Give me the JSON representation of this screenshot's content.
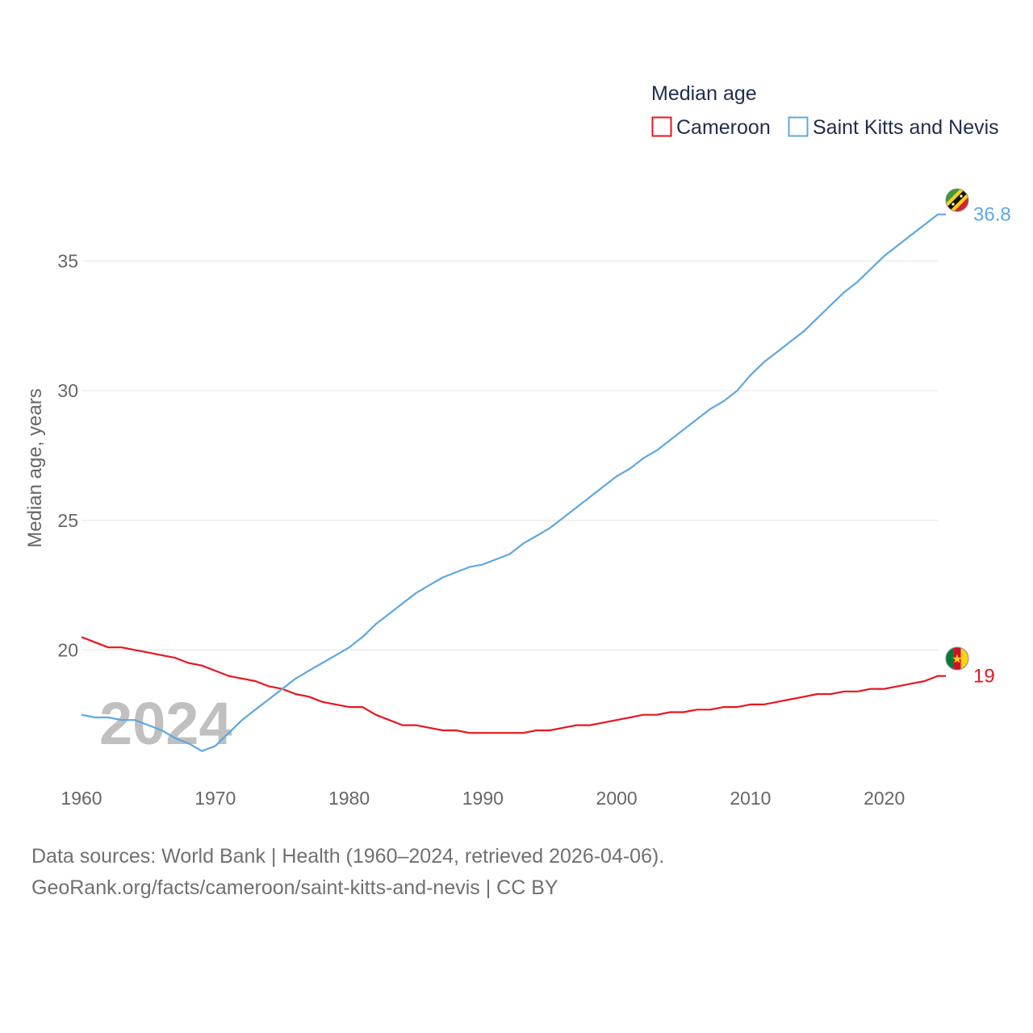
{
  "chart_data": {
    "type": "line",
    "title": "Median age",
    "xlabel": "",
    "ylabel": "Median age, years",
    "xlim": [
      1960,
      2024
    ],
    "ylim": [
      15.5,
      37.6
    ],
    "x_ticks": [
      1960,
      1970,
      1980,
      1990,
      2000,
      2010,
      2020
    ],
    "y_ticks": [
      20,
      25,
      30,
      35
    ],
    "grid": true,
    "legend_position": "top-right",
    "current_year_label": "2024",
    "series": [
      {
        "name": "Cameroon",
        "color": "#e8161e",
        "end_label": "19",
        "flag": "cameroon-flag",
        "x": [
          1960,
          1961,
          1962,
          1963,
          1964,
          1965,
          1966,
          1967,
          1968,
          1969,
          1970,
          1971,
          1972,
          1973,
          1974,
          1975,
          1976,
          1977,
          1978,
          1979,
          1980,
          1981,
          1982,
          1983,
          1984,
          1985,
          1986,
          1987,
          1988,
          1989,
          1990,
          1991,
          1992,
          1993,
          1994,
          1995,
          1996,
          1997,
          1998,
          1999,
          2000,
          2001,
          2002,
          2003,
          2004,
          2005,
          2006,
          2007,
          2008,
          2009,
          2010,
          2011,
          2012,
          2013,
          2014,
          2015,
          2016,
          2017,
          2018,
          2019,
          2020,
          2021,
          2022,
          2023,
          2024
        ],
        "values": [
          20.5,
          20.3,
          20.1,
          20.1,
          20.0,
          19.9,
          19.8,
          19.7,
          19.5,
          19.4,
          19.2,
          19.0,
          18.9,
          18.8,
          18.6,
          18.5,
          18.3,
          18.2,
          18.0,
          17.9,
          17.8,
          17.8,
          17.5,
          17.3,
          17.1,
          17.1,
          17.0,
          16.9,
          16.9,
          16.8,
          16.8,
          16.8,
          16.8,
          16.8,
          16.9,
          16.9,
          17.0,
          17.1,
          17.1,
          17.2,
          17.3,
          17.4,
          17.5,
          17.5,
          17.6,
          17.6,
          17.7,
          17.7,
          17.8,
          17.8,
          17.9,
          17.9,
          18.0,
          18.1,
          18.2,
          18.3,
          18.3,
          18.4,
          18.4,
          18.5,
          18.5,
          18.6,
          18.7,
          18.8,
          19.0
        ]
      },
      {
        "name": "Saint Kitts and Nevis",
        "color": "#5ea7e3",
        "end_label": "36.8",
        "flag": "saint-kitts-and-nevis-flag",
        "x": [
          1960,
          1961,
          1962,
          1963,
          1964,
          1965,
          1966,
          1967,
          1968,
          1969,
          1970,
          1971,
          1972,
          1973,
          1974,
          1975,
          1976,
          1977,
          1978,
          1979,
          1980,
          1981,
          1982,
          1983,
          1984,
          1985,
          1986,
          1987,
          1988,
          1989,
          1990,
          1991,
          1992,
          1993,
          1994,
          1995,
          1996,
          1997,
          1998,
          1999,
          2000,
          2001,
          2002,
          2003,
          2004,
          2005,
          2006,
          2007,
          2008,
          2009,
          2010,
          2011,
          2012,
          2013,
          2014,
          2015,
          2016,
          2017,
          2018,
          2019,
          2020,
          2021,
          2022,
          2023,
          2024
        ],
        "values": [
          17.5,
          17.4,
          17.4,
          17.3,
          17.3,
          17.1,
          16.9,
          16.6,
          16.4,
          16.1,
          16.3,
          16.8,
          17.3,
          17.7,
          18.1,
          18.5,
          18.9,
          19.2,
          19.5,
          19.8,
          20.1,
          20.5,
          21.0,
          21.4,
          21.8,
          22.2,
          22.5,
          22.8,
          23.0,
          23.2,
          23.3,
          23.5,
          23.7,
          24.1,
          24.4,
          24.7,
          25.1,
          25.5,
          25.9,
          26.3,
          26.7,
          27.0,
          27.4,
          27.7,
          28.1,
          28.5,
          28.9,
          29.3,
          29.6,
          30.0,
          30.6,
          31.1,
          31.5,
          31.9,
          32.3,
          32.8,
          33.3,
          33.8,
          34.2,
          34.7,
          35.2,
          35.6,
          36.0,
          36.4,
          36.8
        ]
      }
    ]
  },
  "footer": {
    "line1": "Data sources: World Bank | Health (1960–2024, retrieved 2026-04-06).",
    "line2": "GeoRank.org/facts/cameroon/saint-kitts-and-nevis | CC BY"
  }
}
